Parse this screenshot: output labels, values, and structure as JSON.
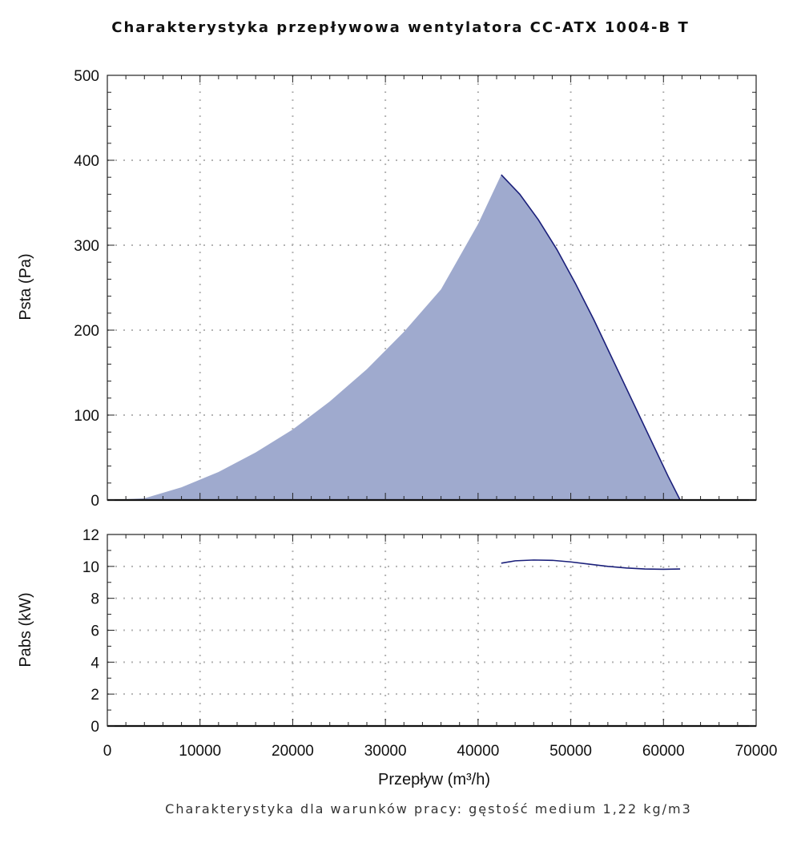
{
  "title": "Charakterystyka przepływowa wentylatora CC-ATX 1004-B T",
  "footer": "Charakterystyka dla warunków pracy: gęstość medium 1,22 kg/m3",
  "chart_data": [
    {
      "type": "area",
      "title": "Charakterystyka przepływowa wentylatora CC-ATX 1004-B T",
      "xlabel": "",
      "ylabel": "Psta (Pa)",
      "xlim": [
        0,
        70000
      ],
      "ylim": [
        0,
        500
      ],
      "xticks": [
        0,
        10000,
        20000,
        30000,
        40000,
        50000,
        60000,
        70000
      ],
      "yticks": [
        0,
        100,
        200,
        300,
        400,
        500
      ],
      "ytick_labels": [
        "0",
        "100",
        "200",
        "300",
        "400",
        "500"
      ],
      "grid": true,
      "fill_color": "#9faace",
      "line_color": "#1a1f7a",
      "series": [
        {
          "x": [
            0,
            4000,
            8000,
            12000,
            16000,
            20000,
            24000,
            28000,
            32000,
            36000,
            40000,
            42500,
            44500,
            46500,
            48500,
            50500,
            52500,
            54500,
            56500,
            58500,
            60500,
            61800
          ],
          "y": [
            0,
            2,
            15,
            33,
            56,
            83,
            116,
            154,
            198,
            248,
            325,
            383,
            360,
            330,
            295,
            255,
            212,
            166,
            120,
            74,
            28,
            0
          ]
        }
      ]
    },
    {
      "type": "line",
      "xlabel": "Przepływ (m³/h)",
      "ylabel": "Pabs (kW)",
      "xlim": [
        0,
        70000
      ],
      "ylim": [
        0,
        12
      ],
      "xticks": [
        0,
        10000,
        20000,
        30000,
        40000,
        50000,
        60000,
        70000
      ],
      "xtick_labels": [
        "0",
        "10000",
        "20000",
        "30000",
        "40000",
        "50000",
        "60000",
        "70000"
      ],
      "yticks": [
        0,
        2,
        4,
        6,
        8,
        10,
        12
      ],
      "ytick_labels": [
        "0",
        "2",
        "4",
        "6",
        "8",
        "10",
        "12"
      ],
      "grid": true,
      "line_color": "#1a1f7a",
      "series": [
        {
          "x": [
            42500,
            44000,
            46000,
            48000,
            50000,
            52000,
            54000,
            56000,
            58000,
            60000,
            61800
          ],
          "y": [
            10.2,
            10.35,
            10.4,
            10.38,
            10.28,
            10.14,
            10.0,
            9.9,
            9.84,
            9.82,
            9.84
          ]
        }
      ]
    }
  ]
}
